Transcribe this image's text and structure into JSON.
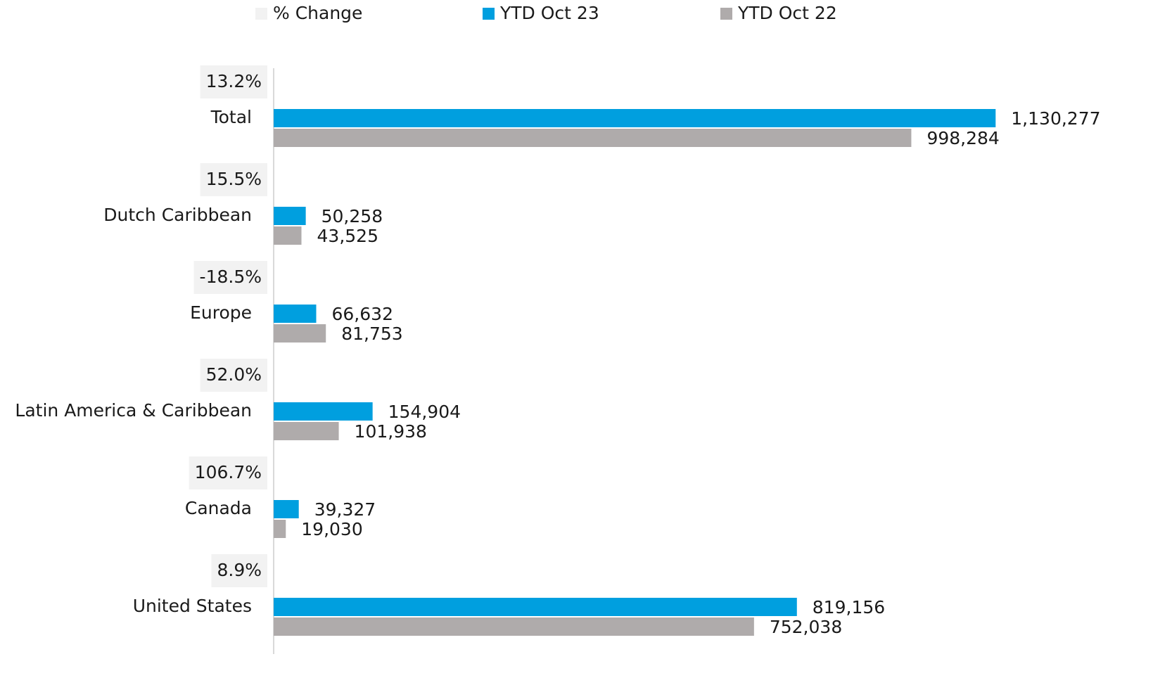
{
  "chart_data": {
    "type": "bar",
    "orientation": "horizontal",
    "categories": [
      "Total",
      "Dutch Caribbean",
      "Europe",
      "Latin America & Caribbean",
      "Canada",
      "United States"
    ],
    "series": [
      {
        "name": "% Change",
        "color": "#f2f2f2",
        "values": [
          13.2,
          15.5,
          -18.5,
          52.0,
          106.7,
          8.9
        ],
        "value_labels": [
          "13.2%",
          "15.5%",
          "-18.5%",
          "52.0%",
          "106.7%",
          "8.9%"
        ]
      },
      {
        "name": "YTD Oct 23",
        "color": "#009fdf",
        "values": [
          1130277,
          50258,
          66632,
          154904,
          39327,
          819156
        ],
        "value_labels": [
          "1,130,277",
          "50,258",
          "66,632",
          "154,904",
          "39,327",
          "819,156"
        ]
      },
      {
        "name": "YTD Oct 22",
        "color": "#afabab",
        "values": [
          998284,
          43525,
          81753,
          101938,
          19030,
          752038
        ],
        "value_labels": [
          "998,284",
          "43,525",
          "81,753",
          "101,938",
          "19,030",
          "752,038"
        ]
      }
    ],
    "xlim": [
      0,
      1250000
    ],
    "legend": "top"
  }
}
